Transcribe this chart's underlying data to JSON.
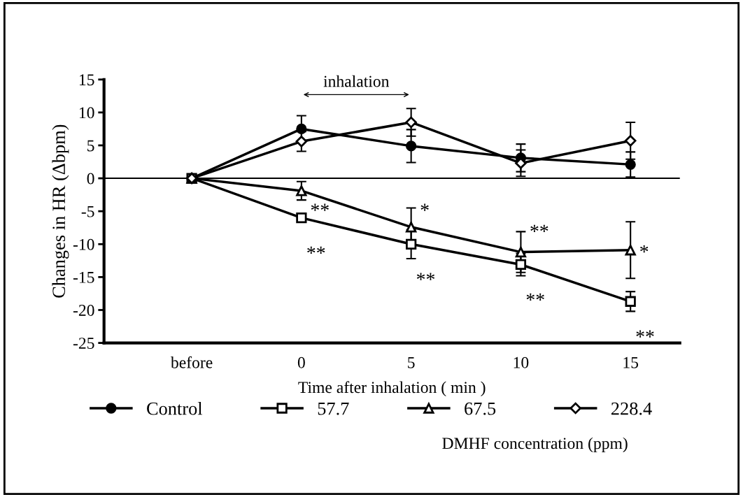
{
  "chart_data": {
    "type": "line",
    "xlabel": "Time after inhalation ( min )",
    "ylabel": "Changes in HR (Δbpm)",
    "legend_title": "DMHF concentration (ppm)",
    "categories": [
      "before",
      "0",
      "5",
      "10",
      "15"
    ],
    "ylim": [
      -25,
      15
    ],
    "yticks": [
      -25,
      -20,
      -15,
      -10,
      -5,
      0,
      5,
      10,
      15
    ],
    "grid": false,
    "legend": "bottom",
    "line_style": "solid",
    "ref_lines": [
      {
        "axis": "y",
        "value": 0,
        "color": "#000000"
      }
    ],
    "series": [
      {
        "name": "Control",
        "color": "#000000",
        "marker": "circle",
        "values": [
          0,
          7.5,
          4.9,
          3.1,
          2.1
        ],
        "errors": [
          null,
          2.0,
          2.5,
          2.1,
          1.9
        ]
      },
      {
        "name": "57.7",
        "color": "#000000",
        "marker": "square",
        "values": [
          0,
          -6.0,
          -10.0,
          -13.1,
          -18.7
        ],
        "errors": [
          null,
          null,
          2.2,
          1.7,
          1.5
        ]
      },
      {
        "name": "67.5",
        "color": "#000000",
        "marker": "triangle",
        "values": [
          0,
          -1.9,
          -7.4,
          -11.2,
          -10.9
        ],
        "errors": [
          null,
          1.4,
          2.9,
          3.1,
          4.3
        ]
      },
      {
        "name": "228.4",
        "color": "#000000",
        "marker": "diamond",
        "values": [
          0,
          5.6,
          8.5,
          2.3,
          5.7
        ],
        "errors": [
          null,
          1.5,
          2.1,
          2.0,
          2.8
        ]
      }
    ],
    "annotations": [
      "inhalation",
      {
        "text": "**",
        "x": "0",
        "y": -5.1
      },
      {
        "text": "**",
        "x": "0",
        "y": -6.0
      },
      {
        "text": "*",
        "x": "5",
        "y": -5.1
      },
      {
        "text": "**",
        "x": "5",
        "y": -10.0
      },
      {
        "text": "**",
        "x": "10",
        "y": -8.3
      },
      {
        "text": "**",
        "x": "10",
        "y": -13.1
      },
      {
        "text": "*",
        "x": "15",
        "y": -11.4
      },
      {
        "text": "**",
        "x": "15",
        "y": -18.7
      }
    ]
  }
}
